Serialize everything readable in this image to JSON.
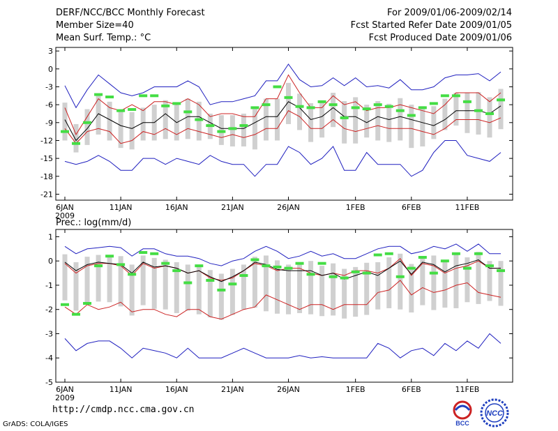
{
  "header": {
    "title": "DERF/NCC/BCC Monthly Forecast",
    "member_size": "Member Size=40",
    "variable": "Mean Surf. Temp.: °C",
    "period": "For 2009/01/06-2009/02/14",
    "started": "Fcst Started Refer Date 2009/01/05",
    "produced": "Fcst Produced Date 2009/01/06"
  },
  "footer": {
    "url": "http://cmdp.ncc.cma.gov.cn",
    "credit": "GrADS: COLA/IGES",
    "logo_bcc": "BCC",
    "logo_ncc": "NCC"
  },
  "colors": {
    "bars": "#d0d0d0",
    "obs": "#44dd44",
    "spread": "#1f1fbf",
    "quartile": "#cc2222",
    "mean": "#000000"
  },
  "chart_data": [
    {
      "type": "line",
      "title": "Mean Surf. Temp.: °C",
      "ylim": [
        -22,
        3.6
      ],
      "yticks": [
        3,
        0,
        -3,
        -6,
        -9,
        -12,
        -15,
        -18,
        -21
      ],
      "xtick_days": [
        0,
        5,
        10,
        15,
        20,
        26,
        31,
        36
      ],
      "xtick_labels": [
        "6JAN",
        "11JAN",
        "16JAN",
        "21JAN",
        "26JAN",
        "1FEB",
        "6FEB",
        "11FEB"
      ],
      "year_label": "2009",
      "x_days": 40,
      "series": [
        {
          "name": "max",
          "color": "#1f1fbf",
          "values": [
            -2.8,
            -6.5,
            -3.5,
            -1,
            -2.5,
            -4,
            -4.5,
            -4,
            -3,
            -3,
            -3,
            -2,
            -3,
            -6,
            -5.5,
            -5.5,
            -5,
            -4.5,
            -2,
            -2,
            0.8,
            -1.8,
            -3,
            -2.8,
            -1.5,
            -2.8,
            -1.5,
            -3,
            -2.8,
            -3.2,
            -1.8,
            -3.5,
            -3.5,
            -3,
            -1.5,
            -1,
            -1,
            -0.8,
            -2,
            -0.5
          ]
        },
        {
          "name": "q3",
          "color": "#cc2222",
          "values": [
            -6.5,
            -11,
            -8,
            -5,
            -6.5,
            -7,
            -6,
            -7,
            -5.5,
            -5.5,
            -6,
            -5,
            -6,
            -8,
            -7.5,
            -7.5,
            -8,
            -8,
            -5,
            -5,
            -1,
            -4,
            -6.5,
            -6.5,
            -4.5,
            -6,
            -5.5,
            -7,
            -6.5,
            -6.5,
            -6,
            -6.5,
            -7,
            -7.5,
            -6,
            -4,
            -4,
            -4,
            -5.5,
            -4
          ]
        },
        {
          "name": "mean",
          "color": "#000000",
          "values": [
            -8.5,
            -12,
            -10,
            -7.5,
            -8.5,
            -9.5,
            -10,
            -9,
            -9,
            -7.5,
            -9,
            -8,
            -8,
            -9,
            -10,
            -10,
            -10,
            -9,
            -8,
            -8,
            -5.5,
            -6.5,
            -8.5,
            -8,
            -6.5,
            -8,
            -8,
            -9,
            -8,
            -8.5,
            -8,
            -8.5,
            -9,
            -9.5,
            -8.5,
            -7,
            -7,
            -7,
            -7.5,
            -6.2
          ]
        },
        {
          "name": "q1",
          "color": "#cc2222",
          "values": [
            -10,
            -12.5,
            -10.5,
            -10,
            -10.5,
            -12.5,
            -12,
            -10.5,
            -11,
            -10,
            -11,
            -10,
            -10.5,
            -11,
            -11.5,
            -11,
            -11.5,
            -11,
            -10,
            -10,
            -7,
            -8,
            -10,
            -10,
            -8.5,
            -10,
            -10.5,
            -10,
            -9.5,
            -10,
            -10,
            -10,
            -10.5,
            -11,
            -10,
            -8.5,
            -8.5,
            -8.5,
            -9,
            -8.2
          ]
        },
        {
          "name": "min",
          "color": "#1f1fbf",
          "values": [
            -15.5,
            -16,
            -15.5,
            -14.5,
            -15.5,
            -17,
            -17,
            -15,
            -15,
            -16,
            -15,
            -15.5,
            -16,
            -14.5,
            -15.5,
            -16,
            -16,
            -18,
            -16,
            -16,
            -13,
            -14,
            -16,
            -15,
            -13,
            -17,
            -17,
            -14,
            -16,
            -16,
            -16,
            -18,
            -17,
            -14,
            -12,
            -12,
            -14.5,
            -15,
            -15.5,
            -14
          ]
        },
        {
          "name": "observed",
          "color": "#44dd44",
          "values": [
            -10.5,
            -12.5,
            -9,
            -4.3,
            -4.7,
            -7,
            -6.8,
            -4.5,
            -4.5,
            -6.2,
            -5.8,
            -7.2,
            -8.5,
            -9.5,
            -10.5,
            -10,
            -9.5,
            -6.5,
            -6,
            -3,
            -4.8,
            -6.3,
            -6.5,
            -5.5,
            -6,
            -8.2,
            -6.5,
            -6.7,
            -6,
            -6.3,
            -7,
            -7.8,
            -6.5,
            -5.8,
            -4.5,
            -4.5,
            -5.5,
            -7,
            -7.5,
            -5.2
          ]
        }
      ]
    },
    {
      "type": "line",
      "title": "Prec.: log(mm/d)",
      "ylim": [
        -5,
        1.3
      ],
      "yticks": [
        1,
        0,
        -1,
        -2,
        -3,
        -4,
        -5
      ],
      "xtick_days": [
        0,
        5,
        10,
        15,
        20,
        26,
        31,
        36
      ],
      "xtick_labels": [
        "6JAN",
        "11JAN",
        "16JAN",
        "21JAN",
        "26JAN",
        "1FEB",
        "6FEB",
        "11FEB"
      ],
      "year_label": "2009",
      "x_days": 40,
      "series": [
        {
          "name": "max",
          "color": "#1f1fbf",
          "values": [
            0.6,
            0.3,
            0.5,
            0.55,
            0.6,
            0.55,
            0.2,
            0.5,
            0.5,
            0.3,
            0.2,
            0.2,
            0.1,
            -0.1,
            -0.2,
            0,
            0.1,
            0.4,
            0.6,
            0.4,
            0.1,
            0.2,
            0.4,
            0.2,
            0.3,
            0.1,
            0.1,
            0.3,
            0.5,
            0.6,
            0.6,
            0.3,
            0.4,
            0.6,
            0.5,
            0.7,
            0.4,
            0.7,
            0.3,
            0.3
          ]
        },
        {
          "name": "mean-upper",
          "color": "#cc2222",
          "values": [
            -0.1,
            -0.5,
            -0.2,
            -0.1,
            -0.1,
            -0.2,
            -0.6,
            -0.1,
            -0.3,
            -0.2,
            -0.3,
            -0.5,
            -0.4,
            -0.7,
            -0.8,
            -0.7,
            -0.4,
            -0.1,
            -0.2,
            -0.4,
            -0.3,
            -0.3,
            -0.5,
            -0.6,
            -0.5,
            -0.6,
            -0.4,
            -0.4,
            -0.5,
            -0.3,
            0.1,
            -0.6,
            -0.1,
            -0.2,
            -0.5,
            -0.3,
            -0.2,
            0,
            -0.3,
            -0.3
          ]
        },
        {
          "name": "mean",
          "color": "#000000",
          "values": [
            -0.05,
            -0.4,
            -0.15,
            -0.05,
            -0.1,
            -0.15,
            -0.5,
            -0.05,
            -0.25,
            -0.2,
            -0.3,
            -0.5,
            -0.4,
            -0.65,
            -0.85,
            -0.65,
            -0.4,
            -0.05,
            -0.15,
            -0.35,
            -0.4,
            -0.4,
            -0.4,
            -0.6,
            -0.5,
            -0.75,
            -0.6,
            -0.45,
            -0.6,
            -0.3,
            0,
            -0.55,
            -0.05,
            -0.15,
            -0.45,
            -0.2,
            -0.1,
            0.05,
            -0.3,
            -0.3
          ]
        },
        {
          "name": "q1",
          "color": "#cc2222",
          "values": [
            -1.9,
            -2.2,
            -1.8,
            -2,
            -1.9,
            -1.7,
            -2.1,
            -2,
            -2,
            -2.2,
            -2.3,
            -2,
            -2,
            -2.3,
            -2.4,
            -2.2,
            -2,
            -1.9,
            -1.4,
            -1.6,
            -1.8,
            -2,
            -1.8,
            -1.8,
            -2,
            -1.8,
            -1.8,
            -1.8,
            -1.3,
            -1.2,
            -0.8,
            -1.4,
            -1.1,
            -1.3,
            -1.2,
            -1,
            -0.9,
            -1.3,
            -1.4,
            -1.5
          ]
        },
        {
          "name": "min",
          "color": "#1f1fbf",
          "values": [
            -3.2,
            -3.7,
            -3.4,
            -3.3,
            -3.3,
            -3.6,
            -4,
            -3.6,
            -3.7,
            -3.8,
            -4,
            -3.6,
            -4,
            -4,
            -4,
            -3.8,
            -3.6,
            -3.8,
            -4,
            -4,
            -4,
            -3.9,
            -4,
            -3.95,
            -4,
            -4,
            -4,
            -4,
            -3.4,
            -3.6,
            -4,
            -3.7,
            -3.6,
            -3.9,
            -3.4,
            -3.7,
            -3.3,
            -3.6,
            -3,
            -3.4
          ]
        },
        {
          "name": "observed",
          "color": "#44dd44",
          "values": [
            -1.8,
            -2.2,
            -1.75,
            -0.2,
            0.2,
            -0.15,
            -0.55,
            0.35,
            0.3,
            -0.1,
            -0.4,
            -0.9,
            -0.2,
            -0.8,
            -1.2,
            -0.95,
            -0.6,
            0.05,
            -0.2,
            -0.25,
            -0.3,
            -0.1,
            -0.55,
            -0.1,
            -0.65,
            -0.7,
            -0.45,
            -0.5,
            0.25,
            0.3,
            -0.65,
            -0.3,
            0.15,
            -0.5,
            0,
            0.3,
            -0.3,
            0.3,
            -0.2,
            -0.4
          ]
        }
      ]
    }
  ]
}
